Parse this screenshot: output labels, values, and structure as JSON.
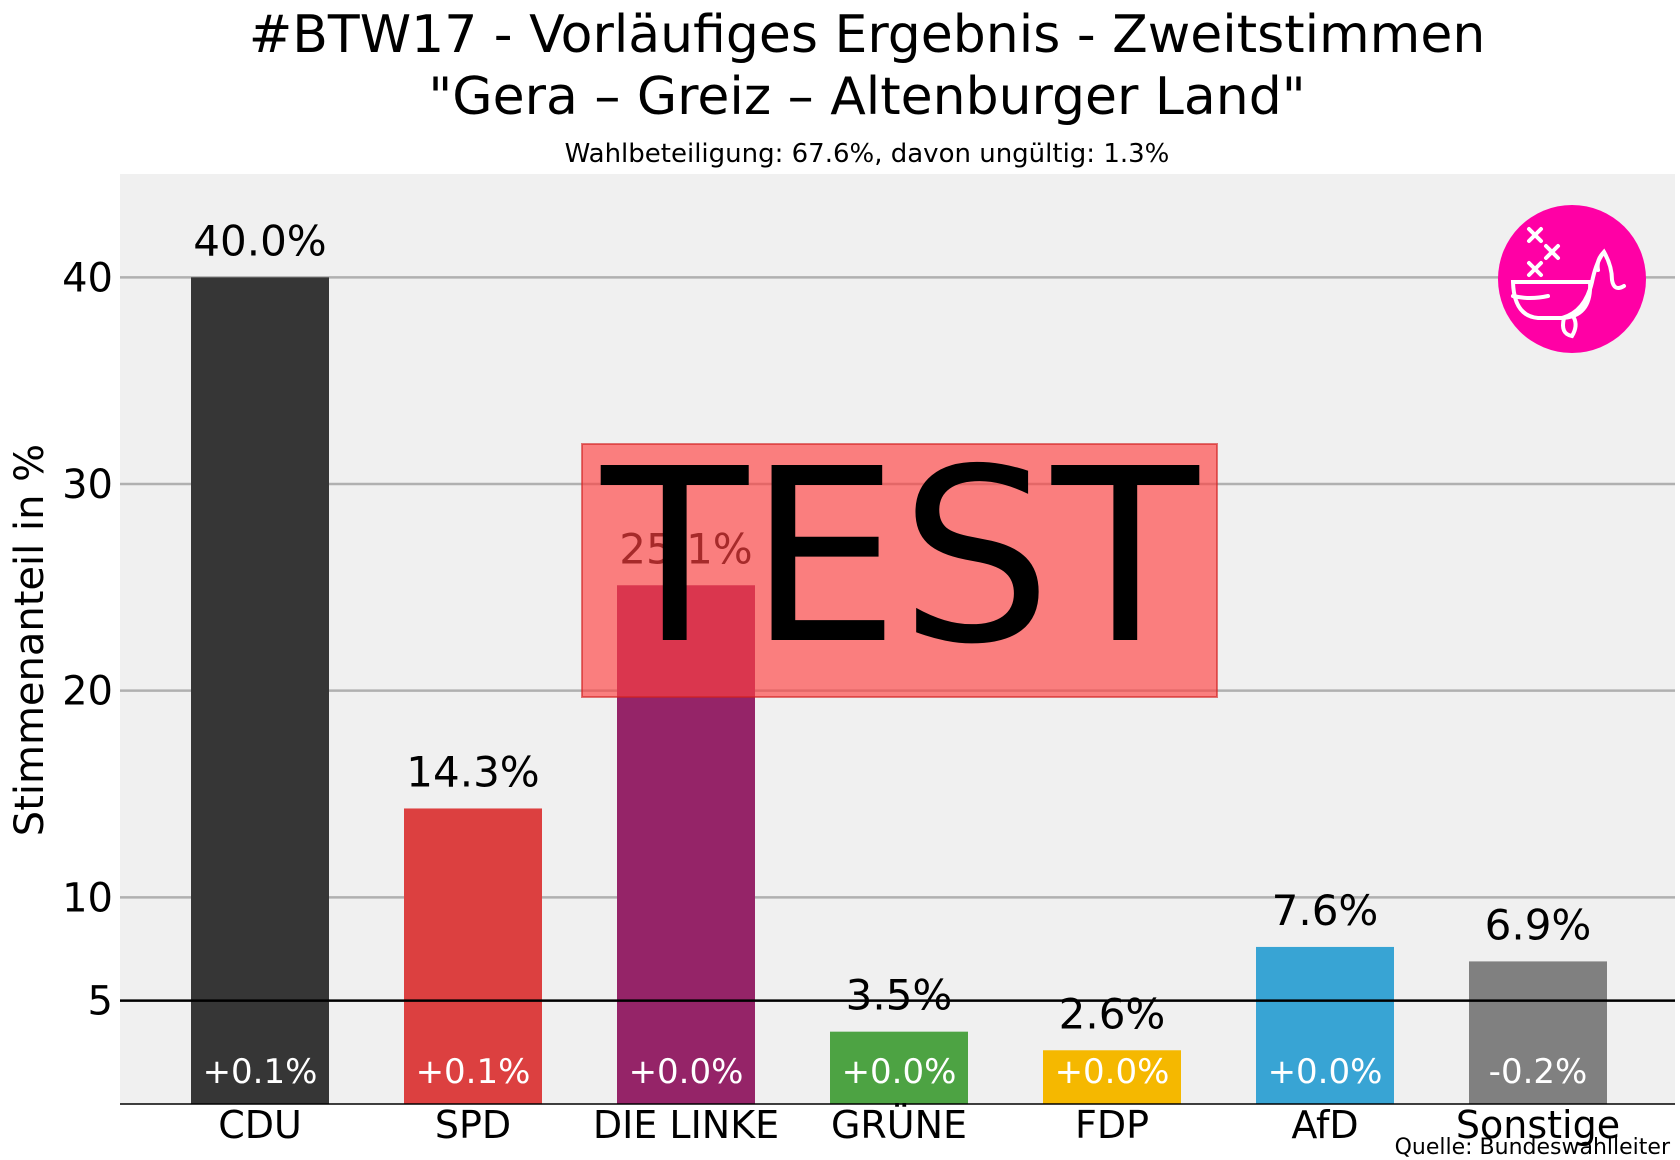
{
  "chart_data": {
    "type": "bar",
    "title_line1": "#BTW17 - Vorläufiges Ergebnis - Zweitstimmen",
    "title_line2": "\"Gera – Greiz – Altenburger Land\"",
    "subtitle": "Wahlbeteiligung: 67.6%,  davon ungültig: 1.3%",
    "ylabel": "Stimmenanteil in %",
    "source": "Quelle: Bundeswahlleiter",
    "watermark": "TEST",
    "ylim": [
      0,
      45
    ],
    "yticks": [
      5,
      10,
      20,
      30,
      40
    ],
    "threshold": 5,
    "grid": true,
    "categories": [
      "CDU",
      "SPD",
      "DIE LINKE",
      "GRÜNE",
      "FDP",
      "AfD",
      "Sonstige"
    ],
    "values": [
      40.0,
      14.3,
      25.1,
      3.5,
      2.6,
      7.6,
      6.9
    ],
    "value_labels": [
      "40.0%",
      "14.3%",
      "25.1%",
      "3.5%",
      "2.6%",
      "7.6%",
      "6.9%"
    ],
    "diff_labels": [
      "+0.1%",
      "+0.1%",
      "+0.0%",
      "+0.0%",
      "+0.0%",
      "+0.0%",
      "-0.2%"
    ],
    "colors": [
      "#363636",
      "#dc4040",
      "#952468",
      "#4da343",
      "#f5b800",
      "#38a4d4",
      "#808080"
    ],
    "logo": {
      "name": "whale-logo-icon",
      "color": "#ff00a5"
    }
  }
}
